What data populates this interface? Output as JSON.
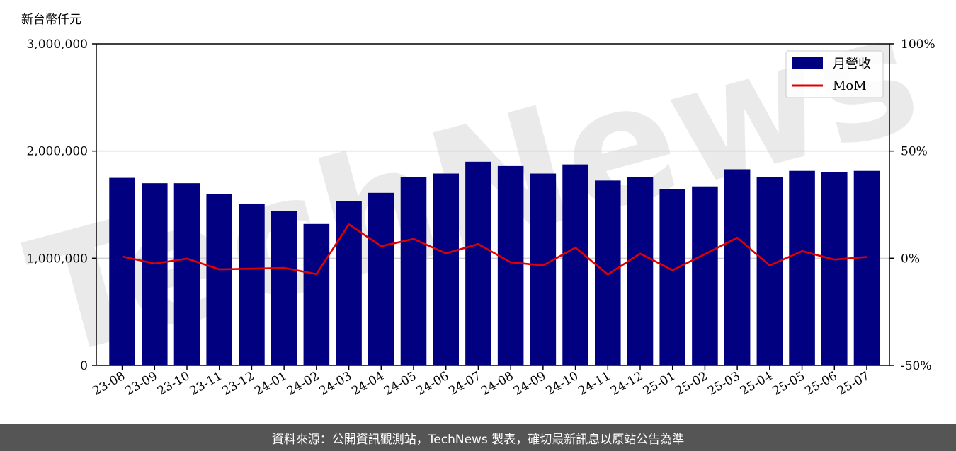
{
  "chart_data": {
    "type": "bar",
    "unit_label": "新台幣仟元",
    "categories": [
      "23-08",
      "23-09",
      "23-10",
      "23-11",
      "23-12",
      "24-01",
      "24-02",
      "24-03",
      "24-04",
      "24-05",
      "24-06",
      "24-07",
      "24-08",
      "24-09",
      "24-10",
      "24-11",
      "24-12",
      "25-01",
      "25-02",
      "25-03",
      "25-04",
      "25-05",
      "25-06",
      "25-07"
    ],
    "series": [
      {
        "name": "月營收",
        "type": "bar",
        "axis": "left",
        "color": "#000080",
        "values": [
          1750000,
          1700000,
          1700000,
          1600000,
          1510000,
          1440000,
          1320000,
          1530000,
          1610000,
          1760000,
          1790000,
          1900000,
          1860000,
          1790000,
          1875000,
          1725000,
          1760000,
          1645000,
          1670000,
          1830000,
          1760000,
          1815000,
          1800000,
          1815000
        ]
      },
      {
        "name": "MoM",
        "type": "line",
        "axis": "right",
        "color": "#e00000",
        "values": [
          0.8,
          -2.5,
          -0.2,
          -5.2,
          -4.9,
          -4.5,
          -7.4,
          15.8,
          5.6,
          9.0,
          2.3,
          6.6,
          -1.9,
          -3.4,
          5.0,
          -7.6,
          2.2,
          -5.6,
          1.9,
          9.6,
          -3.4,
          3.3,
          -0.6,
          0.6
        ]
      }
    ],
    "y_left": {
      "min": 0,
      "max": 3000000,
      "ticks": [
        "0",
        "1,000,000",
        "2,000,000",
        "3,000,000"
      ]
    },
    "y_right": {
      "min": -50,
      "max": 100,
      "ticks": [
        "-50%",
        "0%",
        "50%",
        "100%"
      ]
    },
    "grid": "horizontal",
    "legend_position": "top-right"
  },
  "watermark": "TechNews",
  "footer": {
    "text": "資料來源：公開資訊觀測站，TechNews 製表，確切最新訊息以原站公告為準"
  }
}
